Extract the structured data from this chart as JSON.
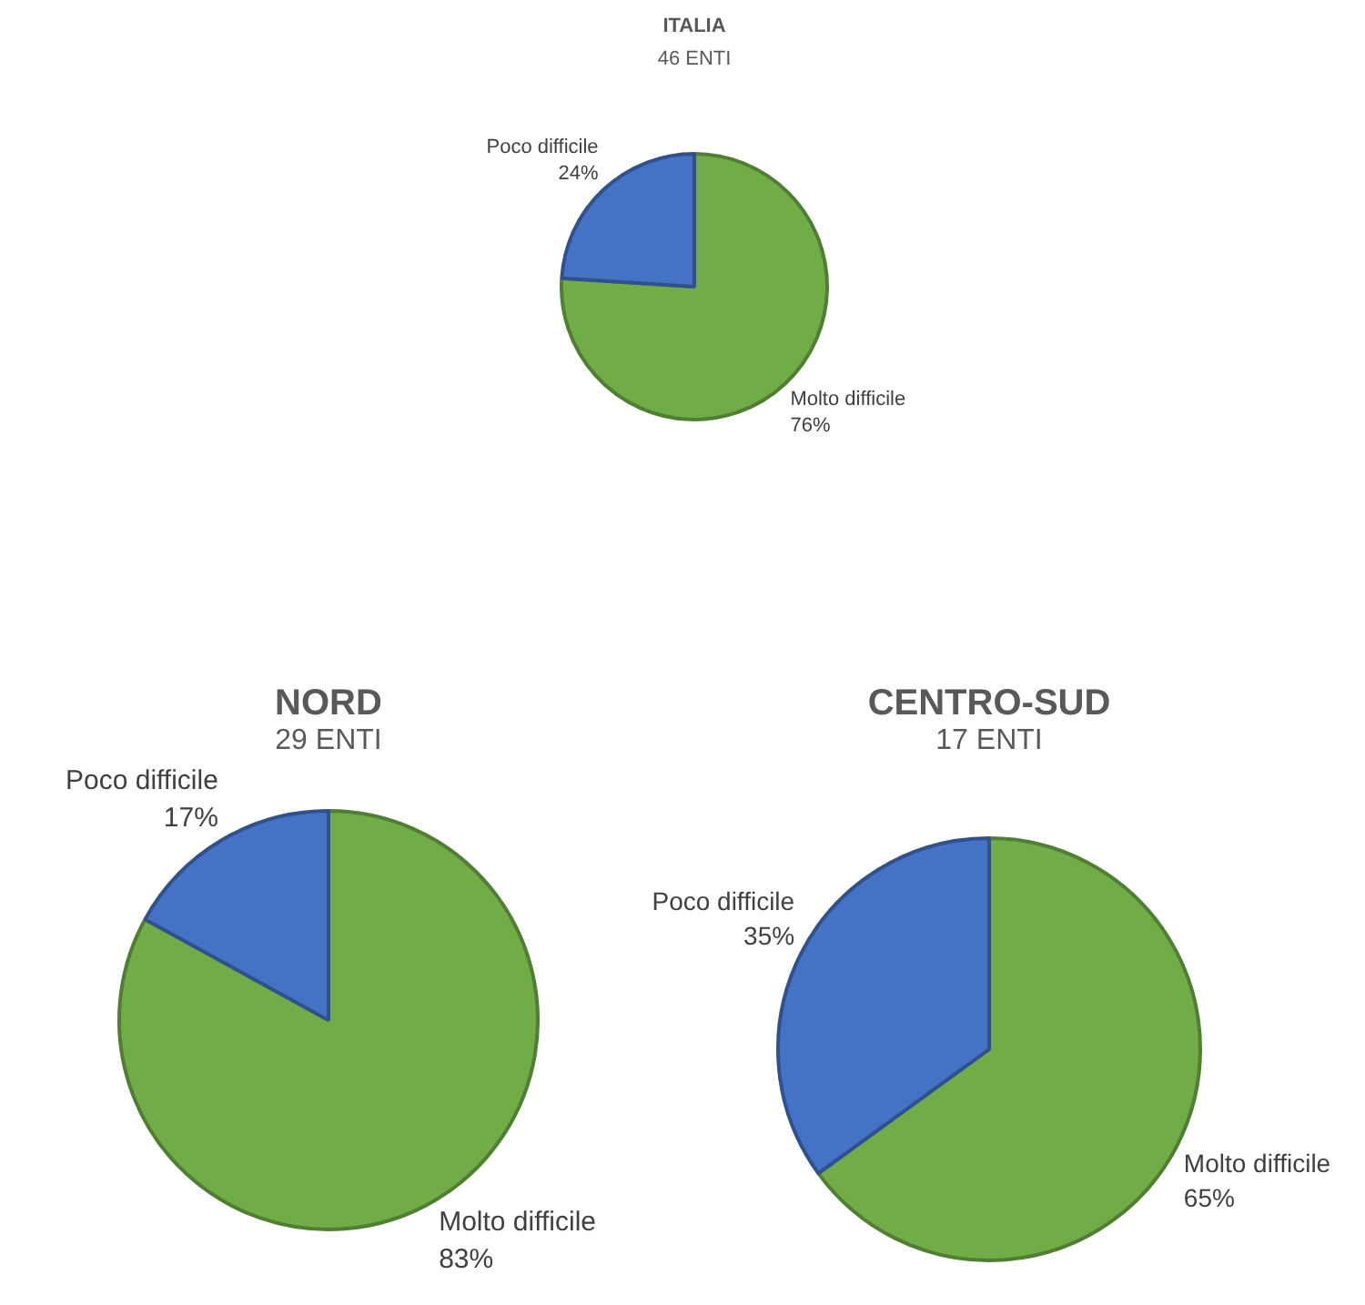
{
  "chart_data": [
    {
      "type": "pie",
      "title": "ITALIA",
      "subtitle": "46 ENTI",
      "categories": [
        "Molto difficile",
        "Poco difficile"
      ],
      "values": [
        76,
        24
      ],
      "value_labels": [
        "76%",
        "24%"
      ],
      "colors": [
        "#70ad47",
        "#4472c4"
      ]
    },
    {
      "type": "pie",
      "title": "NORD",
      "subtitle": "29 ENTI",
      "categories": [
        "Molto difficile",
        "Poco difficile"
      ],
      "values": [
        83,
        17
      ],
      "value_labels": [
        "83%",
        "17%"
      ],
      "colors": [
        "#70ad47",
        "#4472c4"
      ]
    },
    {
      "type": "pie",
      "title": "CENTRO-SUD",
      "subtitle": "17 ENTI",
      "categories": [
        "Molto difficile",
        "Poco difficile"
      ],
      "values": [
        65,
        35
      ],
      "value_labels": [
        "65%",
        "35%"
      ],
      "colors": [
        "#70ad47",
        "#4472c4"
      ]
    }
  ]
}
